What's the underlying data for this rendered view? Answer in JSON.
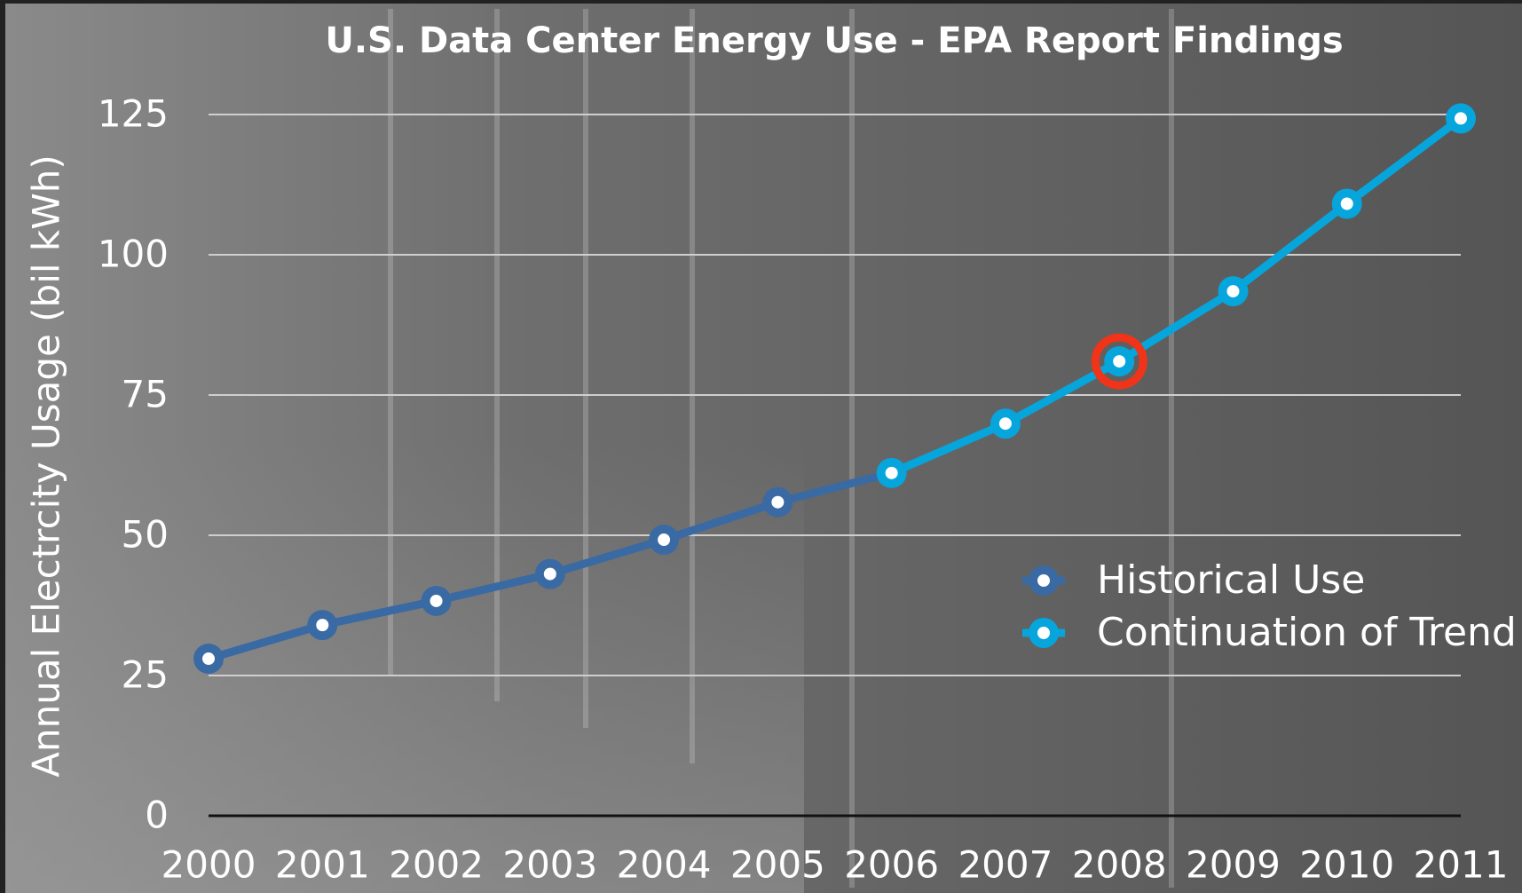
{
  "chart_data": {
    "type": "line",
    "title": "U.S. Data Center Energy Use - EPA Report Findings",
    "y_label": "Annual Electrcity Usage (bil kWh)",
    "categories": [
      "2000",
      "2001",
      "2002",
      "2003",
      "2004",
      "2005",
      "2006",
      "2007",
      "2008",
      "2009",
      "2010",
      "2011"
    ],
    "series": [
      {
        "name": "Historical Use",
        "color": "#3a6aa3",
        "values": [
          28.0,
          34.0,
          38.3,
          43.1,
          49.2,
          55.9,
          61.1,
          null,
          null,
          null,
          null,
          null
        ]
      },
      {
        "name": "Continuation of Trend",
        "color": "#06a5dc",
        "values": [
          null,
          null,
          null,
          null,
          null,
          null,
          61.1,
          69.9,
          81.0,
          93.5,
          109.1,
          124.3
        ]
      }
    ],
    "highlight": {
      "series": 1,
      "index": 8,
      "color": "#f0341a"
    },
    "ylim": [
      0,
      125
    ],
    "yticks": [
      0,
      25,
      50,
      75,
      100,
      125
    ],
    "grid": true
  }
}
